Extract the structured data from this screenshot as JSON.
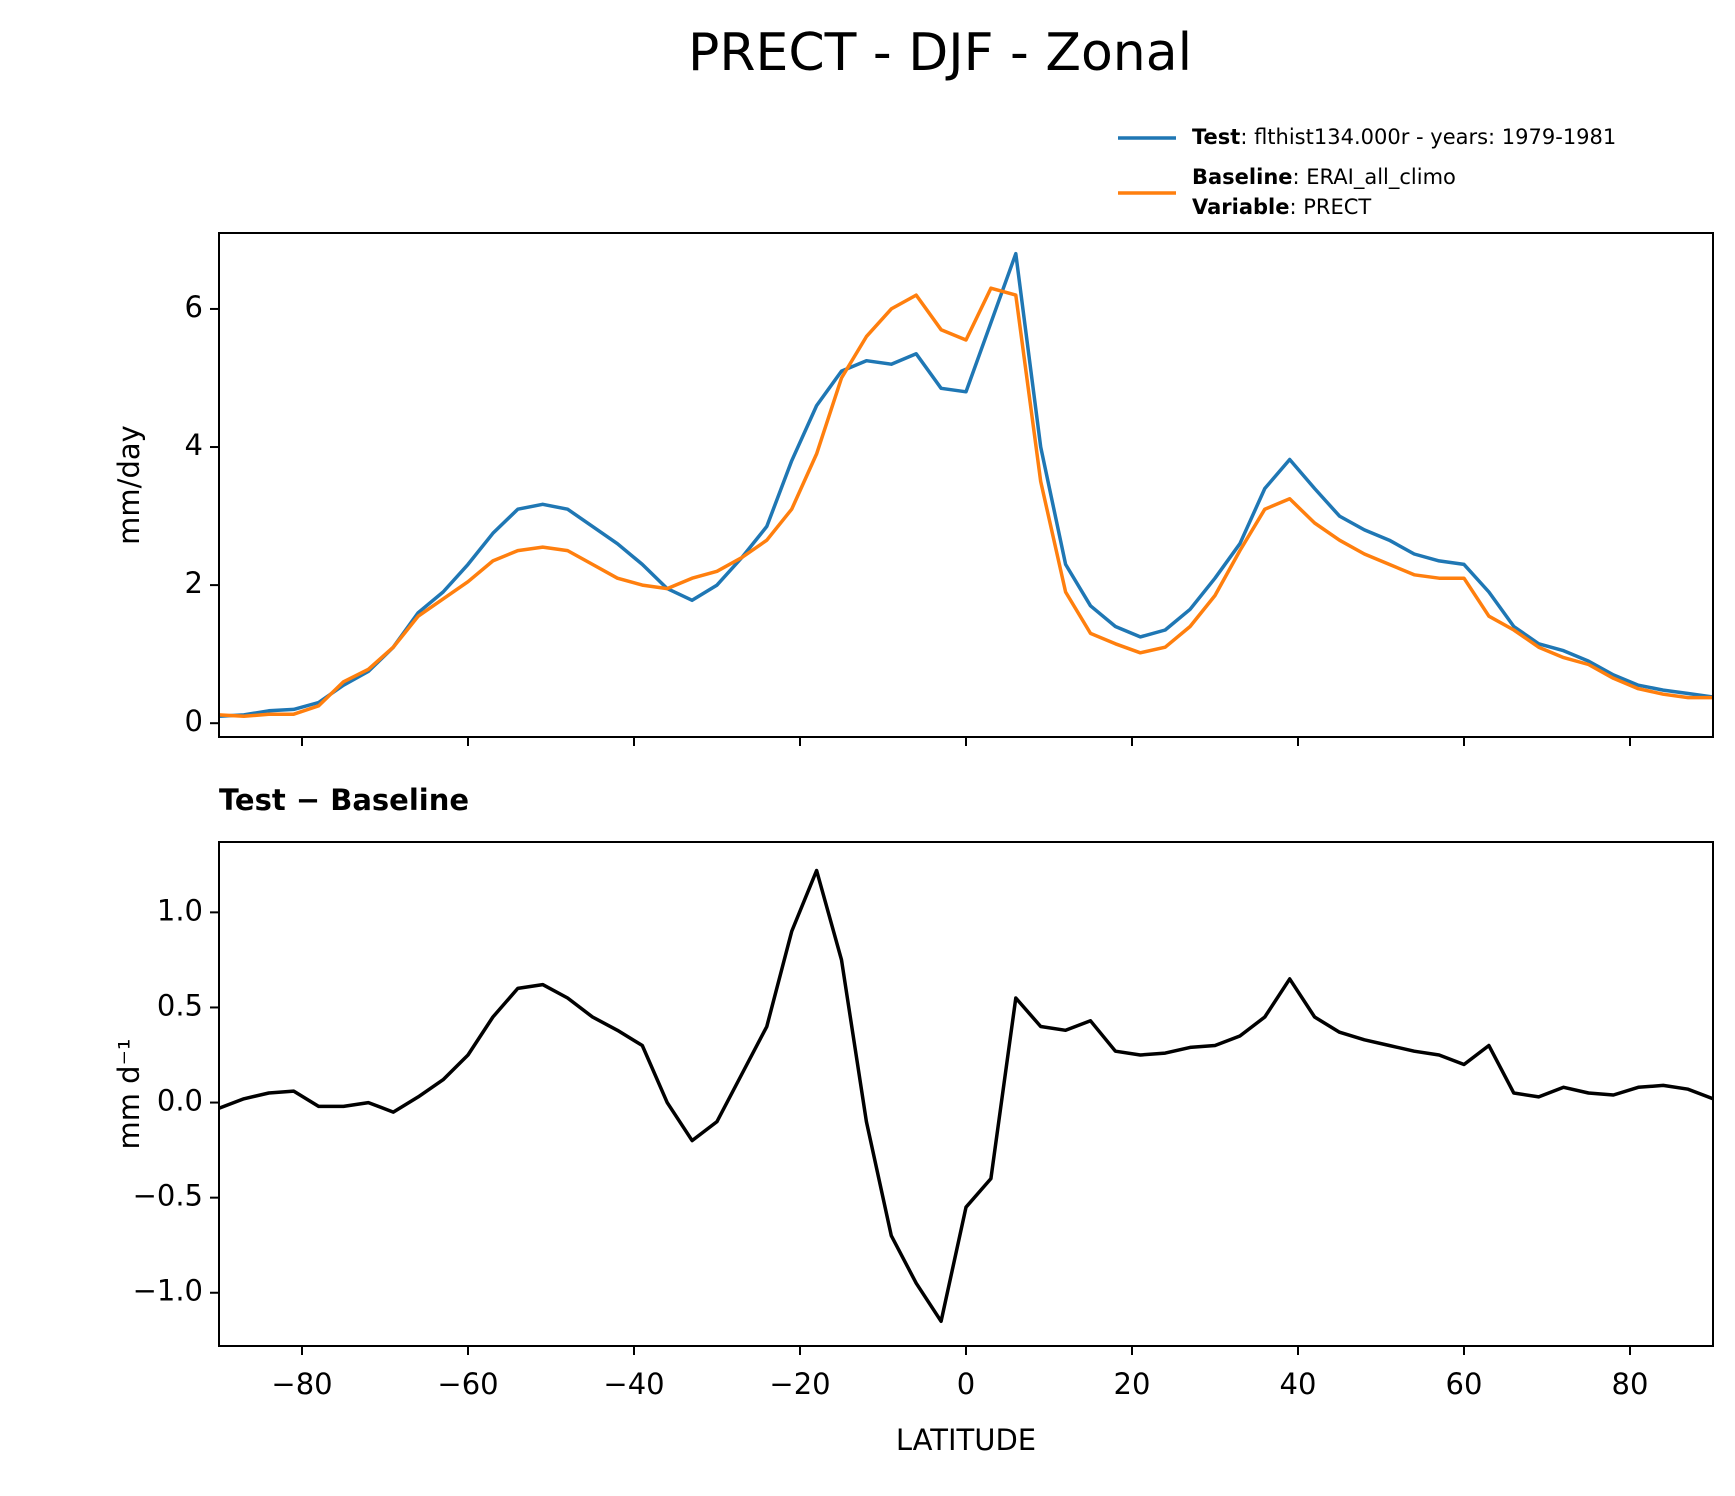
{
  "title": "PRECT - DJF - Zonal",
  "chart_data": [
    {
      "type": "line",
      "ylabel": "mm/day",
      "x": [
        -90,
        -87,
        -84,
        -81,
        -78,
        -75,
        -72,
        -69,
        -66,
        -63,
        -60,
        -57,
        -54,
        -51,
        -48,
        -45,
        -42,
        -39,
        -36,
        -33,
        -30,
        -27,
        -24,
        -21,
        -18,
        -15,
        -12,
        -9,
        -6,
        -3,
        0,
        3,
        6,
        9,
        12,
        15,
        18,
        21,
        24,
        27,
        30,
        33,
        36,
        39,
        42,
        45,
        48,
        51,
        54,
        57,
        60,
        63,
        66,
        69,
        72,
        75,
        78,
        81,
        84,
        87,
        90
      ],
      "series": [
        {
          "name": "Test",
          "description": ": flthist134.000r - years: 1979-1981",
          "color": "#1f77b4",
          "values": [
            0.1,
            0.12,
            0.18,
            0.2,
            0.3,
            0.55,
            0.75,
            1.1,
            1.6,
            1.9,
            2.3,
            2.75,
            3.1,
            3.17,
            3.1,
            2.85,
            2.6,
            2.3,
            1.95,
            1.78,
            2.0,
            2.4,
            2.85,
            3.8,
            4.6,
            5.1,
            5.25,
            5.2,
            5.35,
            4.85,
            4.8,
            5.8,
            6.8,
            4.0,
            2.3,
            1.7,
            1.4,
            1.25,
            1.35,
            1.65,
            2.1,
            2.6,
            3.4,
            3.82,
            3.4,
            3.0,
            2.8,
            2.65,
            2.45,
            2.35,
            2.3,
            1.9,
            1.4,
            1.15,
            1.05,
            0.9,
            0.7,
            0.55,
            0.48,
            0.43,
            0.38
          ]
        },
        {
          "name": "Baseline",
          "description": ": ERAI_all_climo",
          "color": "#ff7f0e",
          "values": [
            0.12,
            0.1,
            0.13,
            0.13,
            0.25,
            0.6,
            0.78,
            1.1,
            1.55,
            1.8,
            2.05,
            2.35,
            2.5,
            2.55,
            2.5,
            2.3,
            2.1,
            2.0,
            1.95,
            2.1,
            2.2,
            2.4,
            2.65,
            3.1,
            3.9,
            5.0,
            5.6,
            6.0,
            6.2,
            5.7,
            5.55,
            6.3,
            6.2,
            3.5,
            1.9,
            1.3,
            1.15,
            1.02,
            1.1,
            1.4,
            1.85,
            2.5,
            3.1,
            3.25,
            2.9,
            2.65,
            2.45,
            2.3,
            2.15,
            2.1,
            2.1,
            1.55,
            1.35,
            1.1,
            0.95,
            0.85,
            0.65,
            0.5,
            0.42,
            0.37,
            0.37
          ]
        }
      ],
      "legend_note": {
        "name": "Variable",
        "description": ": PRECT"
      },
      "xlim": [
        -90,
        90
      ],
      "xticks": [
        -80,
        -60,
        -40,
        -20,
        0,
        20,
        40,
        60,
        80
      ],
      "ylim": [
        -0.2,
        7.1
      ],
      "yticks": [
        0,
        2,
        4,
        6
      ]
    },
    {
      "type": "line",
      "title": "Test − Baseline",
      "xlabel": "LATITUDE",
      "ylabel": "mm d⁻¹",
      "x": [
        -90,
        -87,
        -84,
        -81,
        -78,
        -75,
        -72,
        -69,
        -66,
        -63,
        -60,
        -57,
        -54,
        -51,
        -48,
        -45,
        -42,
        -39,
        -36,
        -33,
        -30,
        -27,
        -24,
        -21,
        -18,
        -15,
        -12,
        -9,
        -6,
        -3,
        0,
        3,
        6,
        9,
        12,
        15,
        18,
        21,
        24,
        27,
        30,
        33,
        36,
        39,
        42,
        45,
        48,
        51,
        54,
        57,
        60,
        63,
        66,
        69,
        72,
        75,
        78,
        81,
        84,
        87,
        90
      ],
      "series": [
        {
          "color": "#000000",
          "values": [
            -0.03,
            0.02,
            0.05,
            0.06,
            -0.02,
            -0.02,
            0.0,
            -0.05,
            0.03,
            0.12,
            0.25,
            0.45,
            0.6,
            0.62,
            0.55,
            0.45,
            0.38,
            0.3,
            0.0,
            -0.2,
            -0.1,
            0.15,
            0.4,
            0.9,
            1.22,
            0.75,
            -0.1,
            -0.7,
            -0.95,
            -1.15,
            -0.55,
            -0.4,
            0.55,
            0.4,
            0.38,
            0.43,
            0.27,
            0.25,
            0.26,
            0.29,
            0.3,
            0.35,
            0.45,
            0.65,
            0.45,
            0.37,
            0.33,
            0.3,
            0.27,
            0.25,
            0.2,
            0.3,
            0.05,
            0.03,
            0.08,
            0.05,
            0.04,
            0.08,
            0.09,
            0.07,
            0.02
          ]
        }
      ],
      "xlim": [
        -90,
        90
      ],
      "xticks": [
        {
          "value": -80,
          "label": "−80"
        },
        {
          "value": -60,
          "label": "−60"
        },
        {
          "value": -40,
          "label": "−40"
        },
        {
          "value": -20,
          "label": "−20"
        },
        0,
        20,
        40,
        60,
        80
      ],
      "ylim": [
        -1.28,
        1.37
      ],
      "yticks": [
        {
          "value": -1.0,
          "label": "−1.0"
        },
        {
          "value": -0.5,
          "label": "−0.5"
        },
        {
          "value": 0.0,
          "label": "0.0"
        },
        {
          "value": 0.5,
          "label": "0.5"
        },
        {
          "value": 1.0,
          "label": "1.0"
        }
      ]
    }
  ]
}
